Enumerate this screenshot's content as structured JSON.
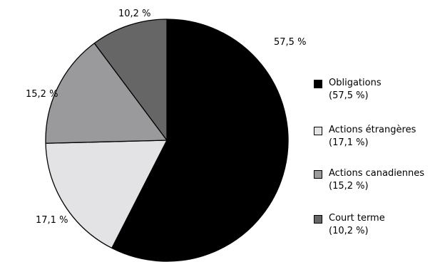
{
  "chart_data": {
    "type": "pie",
    "slices": [
      {
        "name": "Obligations",
        "value": 57.5,
        "label": "57,5 %",
        "color": "#000000"
      },
      {
        "name": "Actions étrangères",
        "value": 17.1,
        "label": "17,1 %",
        "color": "#e3e3e5"
      },
      {
        "name": "Actions canadiennes",
        "value": 15.2,
        "label": "15,2 %",
        "color": "#9a9a9c"
      },
      {
        "name": "Court terme",
        "value": 10.2,
        "label": "10,2 %",
        "color": "#666666"
      }
    ],
    "start_angle_deg": 0,
    "direction": "clockwise",
    "legend": {
      "position": "right",
      "items": [
        {
          "name": "Obligations",
          "value_text": "(57,5 %)"
        },
        {
          "name": "Actions étrangères",
          "value_text": "(17,1 %)"
        },
        {
          "name": "Actions canadiennes",
          "value_text": "(15,2 %)"
        },
        {
          "name": "Court terme",
          "value_text": "(10,2 %)"
        }
      ]
    }
  }
}
